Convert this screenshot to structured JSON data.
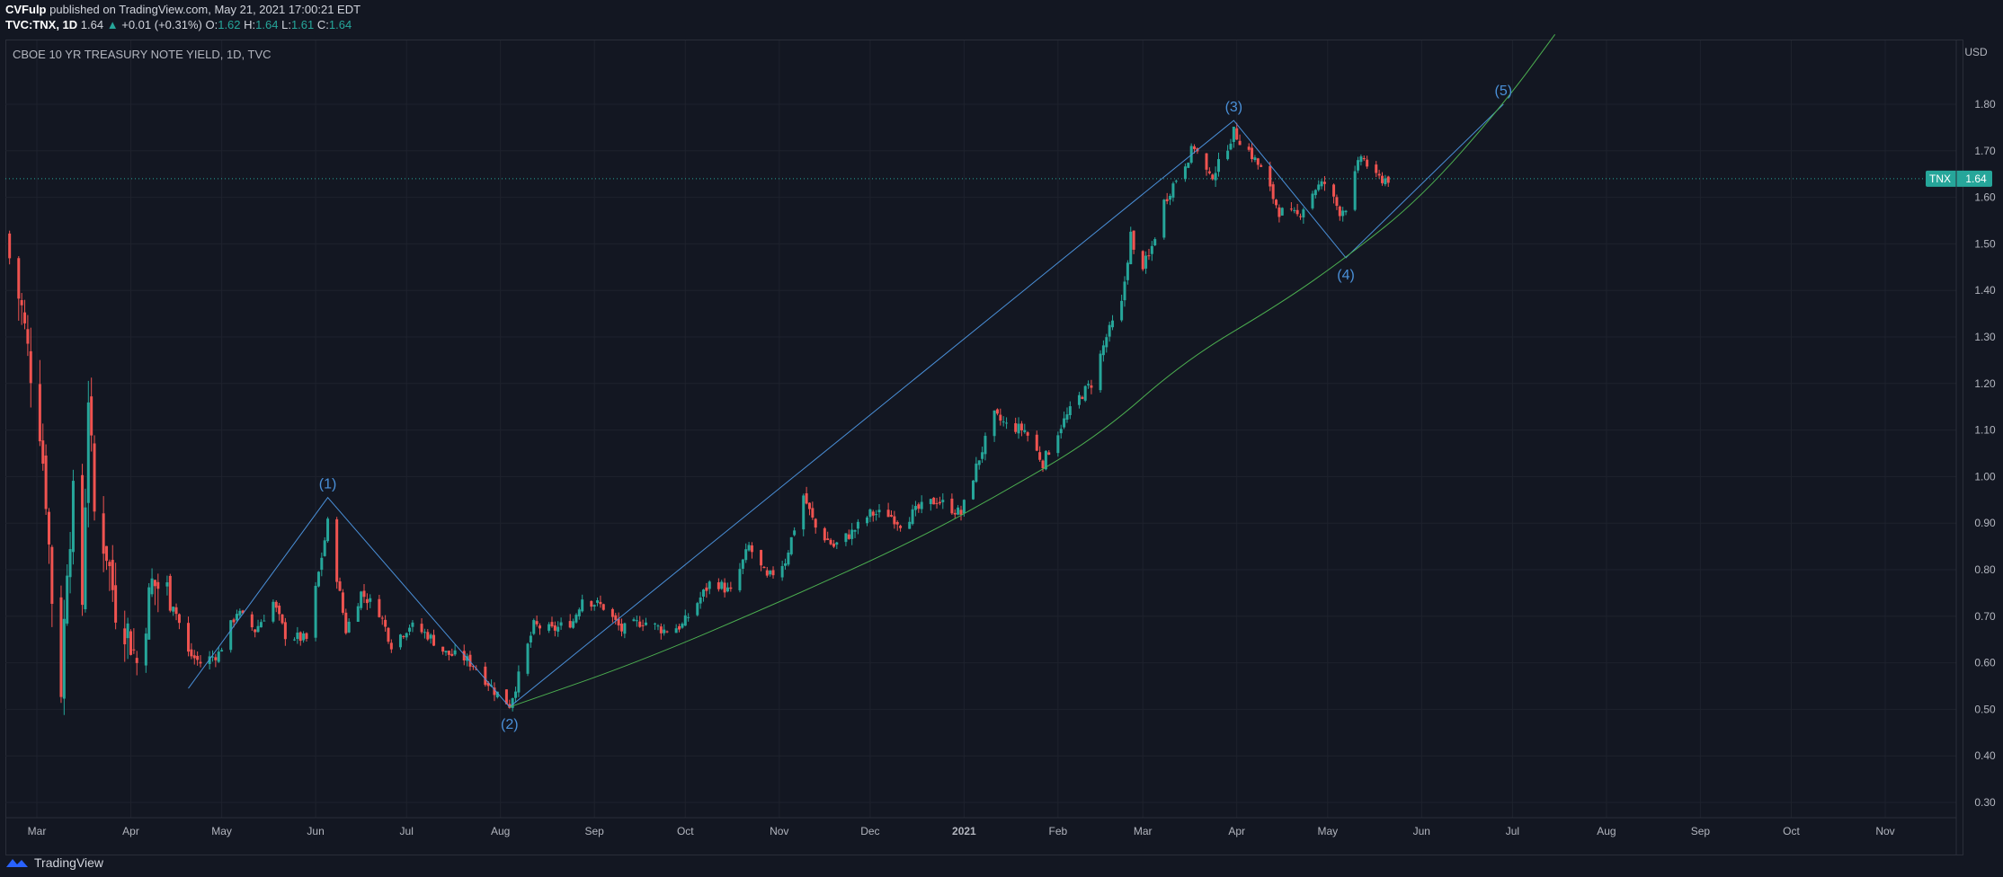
{
  "header": {
    "publisher": "CVFulp",
    "published_text": "published on TradingView.com, May 21, 2021 17:00:21 EDT",
    "symbol": "TVC:TNX, 1D",
    "last": "1.64",
    "change": "+0.01 (+0.31%)",
    "o_label": "O:",
    "o": "1.62",
    "h_label": "H:",
    "h": "1.64",
    "l_label": "L:",
    "l": "1.61",
    "c_label": "C:",
    "c": "1.64"
  },
  "footer": {
    "brand": "TradingView"
  },
  "colors": {
    "up": "#26a69a",
    "down": "#ef5350",
    "wave_line": "#4a90d9",
    "curve": "#4caf50",
    "background": "#131722"
  },
  "chart_data": {
    "type": "candlestick",
    "title": "CBOE 10 YR TREASURY NOTE YIELD, 1D, TVC",
    "currency": "USD",
    "ylim": [
      0.25,
      1.95
    ],
    "y_ticks": [
      "0.30",
      "0.40",
      "0.50",
      "0.60",
      "0.70",
      "0.80",
      "0.90",
      "1.00",
      "1.10",
      "1.20",
      "1.30",
      "1.40",
      "1.50",
      "1.60",
      "1.70",
      "1.80"
    ],
    "x_ticks": [
      {
        "label": "Mar",
        "date": "2020-03-01"
      },
      {
        "label": "Apr",
        "date": "2020-04-01"
      },
      {
        "label": "May",
        "date": "2020-05-01"
      },
      {
        "label": "Jun",
        "date": "2020-06-01"
      },
      {
        "label": "Jul",
        "date": "2020-07-01"
      },
      {
        "label": "Aug",
        "date": "2020-08-01"
      },
      {
        "label": "Sep",
        "date": "2020-09-01"
      },
      {
        "label": "Oct",
        "date": "2020-10-01"
      },
      {
        "label": "Nov",
        "date": "2020-11-01"
      },
      {
        "label": "Dec",
        "date": "2020-12-01"
      },
      {
        "label": "2021",
        "date": "2021-01-01",
        "bold": true
      },
      {
        "label": "Feb",
        "date": "2021-02-01"
      },
      {
        "label": "Mar",
        "date": "2021-03-01"
      },
      {
        "label": "Apr",
        "date": "2021-04-01"
      },
      {
        "label": "May",
        "date": "2021-05-01"
      },
      {
        "label": "Jun",
        "date": "2021-06-01"
      },
      {
        "label": "Jul",
        "date": "2021-07-01"
      },
      {
        "label": "Aug",
        "date": "2021-08-01"
      },
      {
        "label": "Sep",
        "date": "2021-09-01"
      },
      {
        "label": "Oct",
        "date": "2021-10-01"
      },
      {
        "label": "Nov",
        "date": "2021-11-01"
      }
    ],
    "price_label": {
      "text": "TNX",
      "value": 1.64
    },
    "price_value_text": "1.64",
    "close_series": [
      {
        "date": "2020-02-21",
        "close": 1.47
      },
      {
        "date": "2020-02-25",
        "close": 1.36
      },
      {
        "date": "2020-02-27",
        "close": 1.27
      },
      {
        "date": "2020-03-02",
        "close": 1.11
      },
      {
        "date": "2020-03-04",
        "close": 0.96
      },
      {
        "date": "2020-03-06",
        "close": 0.74
      },
      {
        "date": "2020-03-09",
        "close": 0.55
      },
      {
        "date": "2020-03-11",
        "close": 0.82
      },
      {
        "date": "2020-03-13",
        "close": 0.95
      },
      {
        "date": "2020-03-16",
        "close": 0.73
      },
      {
        "date": "2020-03-18",
        "close": 1.18
      },
      {
        "date": "2020-03-20",
        "close": 0.92
      },
      {
        "date": "2020-03-24",
        "close": 0.84
      },
      {
        "date": "2020-03-27",
        "close": 0.72
      },
      {
        "date": "2020-03-31",
        "close": 0.67
      },
      {
        "date": "2020-04-03",
        "close": 0.6
      },
      {
        "date": "2020-04-08",
        "close": 0.77
      },
      {
        "date": "2020-04-14",
        "close": 0.75
      },
      {
        "date": "2020-04-20",
        "close": 0.62
      },
      {
        "date": "2020-04-24",
        "close": 0.6
      },
      {
        "date": "2020-04-30",
        "close": 0.62
      },
      {
        "date": "2020-05-06",
        "close": 0.71
      },
      {
        "date": "2020-05-12",
        "close": 0.67
      },
      {
        "date": "2020-05-18",
        "close": 0.73
      },
      {
        "date": "2020-05-22",
        "close": 0.66
      },
      {
        "date": "2020-05-29",
        "close": 0.65
      },
      {
        "date": "2020-06-05",
        "close": 0.9
      },
      {
        "date": "2020-06-11",
        "close": 0.67
      },
      {
        "date": "2020-06-16",
        "close": 0.75
      },
      {
        "date": "2020-06-22",
        "close": 0.71
      },
      {
        "date": "2020-06-26",
        "close": 0.64
      },
      {
        "date": "2020-07-02",
        "close": 0.68
      },
      {
        "date": "2020-07-08",
        "close": 0.66
      },
      {
        "date": "2020-07-14",
        "close": 0.62
      },
      {
        "date": "2020-07-20",
        "close": 0.61
      },
      {
        "date": "2020-07-24",
        "close": 0.59
      },
      {
        "date": "2020-07-30",
        "close": 0.54
      },
      {
        "date": "2020-08-04",
        "close": 0.51
      },
      {
        "date": "2020-08-07",
        "close": 0.57
      },
      {
        "date": "2020-08-12",
        "close": 0.68
      },
      {
        "date": "2020-08-18",
        "close": 0.67
      },
      {
        "date": "2020-08-25",
        "close": 0.69
      },
      {
        "date": "2020-08-28",
        "close": 0.74
      },
      {
        "date": "2020-09-04",
        "close": 0.72
      },
      {
        "date": "2020-09-10",
        "close": 0.67
      },
      {
        "date": "2020-09-17",
        "close": 0.69
      },
      {
        "date": "2020-09-24",
        "close": 0.67
      },
      {
        "date": "2020-09-30",
        "close": 0.68
      },
      {
        "date": "2020-10-06",
        "close": 0.74
      },
      {
        "date": "2020-10-10",
        "close": 0.78
      },
      {
        "date": "2020-10-16",
        "close": 0.75
      },
      {
        "date": "2020-10-22",
        "close": 0.85
      },
      {
        "date": "2020-10-28",
        "close": 0.78
      },
      {
        "date": "2020-11-03",
        "close": 0.82
      },
      {
        "date": "2020-11-09",
        "close": 0.96
      },
      {
        "date": "2020-11-13",
        "close": 0.89
      },
      {
        "date": "2020-11-19",
        "close": 0.85
      },
      {
        "date": "2020-11-25",
        "close": 0.88
      },
      {
        "date": "2020-12-01",
        "close": 0.92
      },
      {
        "date": "2020-12-07",
        "close": 0.92
      },
      {
        "date": "2020-12-11",
        "close": 0.9
      },
      {
        "date": "2020-12-17",
        "close": 0.93
      },
      {
        "date": "2020-12-23",
        "close": 0.95
      },
      {
        "date": "2020-12-31",
        "close": 0.92
      },
      {
        "date": "2021-01-06",
        "close": 1.04
      },
      {
        "date": "2021-01-11",
        "close": 1.13
      },
      {
        "date": "2021-01-15",
        "close": 1.11
      },
      {
        "date": "2021-01-21",
        "close": 1.1
      },
      {
        "date": "2021-01-27",
        "close": 1.03
      },
      {
        "date": "2021-02-02",
        "close": 1.11
      },
      {
        "date": "2021-02-08",
        "close": 1.17
      },
      {
        "date": "2021-02-12",
        "close": 1.2
      },
      {
        "date": "2021-02-17",
        "close": 1.3
      },
      {
        "date": "2021-02-22",
        "close": 1.37
      },
      {
        "date": "2021-02-25",
        "close": 1.52
      },
      {
        "date": "2021-02-27",
        "close": 1.44
      },
      {
        "date": "2021-03-03",
        "close": 1.47
      },
      {
        "date": "2021-03-08",
        "close": 1.59
      },
      {
        "date": "2021-03-12",
        "close": 1.64
      },
      {
        "date": "2021-03-18",
        "close": 1.71
      },
      {
        "date": "2021-03-23",
        "close": 1.64
      },
      {
        "date": "2021-03-26",
        "close": 1.67
      },
      {
        "date": "2021-03-31",
        "close": 1.74
      },
      {
        "date": "2021-04-05",
        "close": 1.7
      },
      {
        "date": "2021-04-09",
        "close": 1.66
      },
      {
        "date": "2021-04-15",
        "close": 1.57
      },
      {
        "date": "2021-04-21",
        "close": 1.56
      },
      {
        "date": "2021-04-27",
        "close": 1.62
      },
      {
        "date": "2021-04-30",
        "close": 1.63
      },
      {
        "date": "2021-05-05",
        "close": 1.57
      },
      {
        "date": "2021-05-07",
        "close": 1.58
      },
      {
        "date": "2021-05-12",
        "close": 1.69
      },
      {
        "date": "2021-05-17",
        "close": 1.64
      },
      {
        "date": "2021-05-21",
        "close": 1.64
      }
    ],
    "annotations": [
      {
        "label": "(1)",
        "date": "2020-06-05",
        "value": 0.955,
        "position": "above"
      },
      {
        "label": "(2)",
        "date": "2020-08-04",
        "value": 0.505,
        "position": "below"
      },
      {
        "label": "(3)",
        "date": "2021-03-31",
        "value": 1.765,
        "position": "above"
      },
      {
        "label": "(4)",
        "date": "2021-05-07",
        "value": 1.47,
        "position": "below"
      },
      {
        "label": "(5)",
        "date": "2021-06-28",
        "value": 1.8,
        "position": "above"
      }
    ],
    "wave_lines": [
      [
        [
          "2020-04-20",
          0.545
        ],
        [
          "2020-06-05",
          0.955
        ],
        [
          "2020-08-04",
          0.505
        ],
        [
          "2021-03-31",
          1.765
        ],
        [
          "2021-05-07",
          1.47
        ],
        [
          "2021-06-28",
          1.8
        ]
      ]
    ],
    "support_curve": [
      [
        "2020-08-04",
        0.505
      ],
      [
        "2020-09-15",
        0.6
      ],
      [
        "2020-11-01",
        0.73
      ],
      [
        "2020-12-15",
        0.86
      ],
      [
        "2021-01-15",
        0.97
      ],
      [
        "2021-02-15",
        1.09
      ],
      [
        "2021-03-15",
        1.25
      ],
      [
        "2021-04-15",
        1.37
      ],
      [
        "2021-05-07",
        1.47
      ],
      [
        "2021-06-01",
        1.6
      ],
      [
        "2021-06-28",
        1.8
      ],
      [
        "2021-07-15",
        1.95
      ]
    ]
  }
}
